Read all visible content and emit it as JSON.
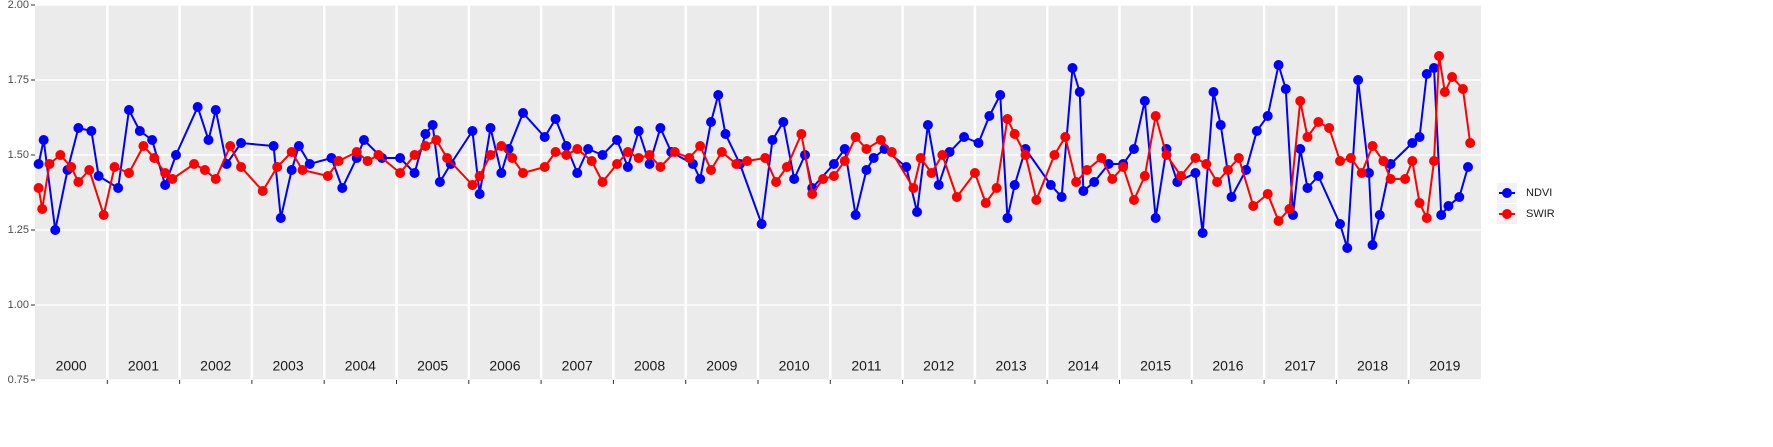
{
  "chart_data": {
    "type": "line",
    "categories": [
      "2000",
      "2001",
      "2002",
      "2003",
      "2004",
      "2005",
      "2006",
      "2007",
      "2008",
      "2009",
      "2010",
      "2011",
      "2012",
      "2013",
      "2014",
      "2015",
      "2016",
      "2017",
      "2018",
      "2019"
    ],
    "xlim": [
      2000,
      2020
    ],
    "ylim": [
      0.75,
      2.0
    ],
    "yticks": [
      0.75,
      {
        "value": 1.0,
        "label": "1.00"
      },
      1.25,
      {
        "value": 1.5,
        "label": "1.50"
      },
      1.75,
      {
        "value": 2.0,
        "label": "2.00"
      }
    ],
    "grid": true,
    "legend": "right",
    "series": [
      {
        "name": "NDVI",
        "color": "#0000ff",
        "x": [
          2000.05,
          2000.12,
          2000.28,
          2000.45,
          2000.6,
          2000.78,
          2000.88,
          2001.15,
          2001.3,
          2001.45,
          2001.62,
          2001.8,
          2001.95,
          2002.25,
          2002.4,
          2002.5,
          2002.65,
          2002.85,
          2003.3,
          2003.4,
          2003.55,
          2003.65,
          2003.8,
          2004.1,
          2004.25,
          2004.45,
          2004.55,
          2004.8,
          2005.05,
          2005.25,
          2005.4,
          2005.5,
          2005.6,
          2005.75,
          2006.05,
          2006.15,
          2006.3,
          2006.45,
          2006.55,
          2006.75,
          2007.05,
          2007.2,
          2007.35,
          2007.5,
          2007.65,
          2007.85,
          2008.05,
          2008.2,
          2008.35,
          2008.5,
          2008.65,
          2008.8,
          2009.1,
          2009.2,
          2009.35,
          2009.45,
          2009.55,
          2009.75,
          2010.05,
          2010.2,
          2010.35,
          2010.5,
          2010.65,
          2010.75,
          2011.05,
          2011.2,
          2011.35,
          2011.5,
          2011.6,
          2011.75,
          2012.05,
          2012.2,
          2012.35,
          2012.5,
          2012.65,
          2012.85,
          2013.05,
          2013.2,
          2013.35,
          2013.45,
          2013.55,
          2013.7,
          2014.05,
          2014.2,
          2014.35,
          2014.45,
          2014.5,
          2014.65,
          2014.85,
          2015.05,
          2015.2,
          2015.35,
          2015.5,
          2015.65,
          2015.8,
          2016.05,
          2016.15,
          2016.3,
          2016.4,
          2016.55,
          2016.75,
          2016.9,
          2017.05,
          2017.2,
          2017.3,
          2017.4,
          2017.5,
          2017.6,
          2017.75,
          2018.05,
          2018.15,
          2018.3,
          2018.45,
          2018.5,
          2018.6,
          2018.75,
          2019.05,
          2019.15,
          2019.25,
          2019.35,
          2019.45,
          2019.55,
          2019.7,
          2019.82
        ],
        "values": [
          1.47,
          1.55,
          1.25,
          1.45,
          1.59,
          1.58,
          1.43,
          1.39,
          1.65,
          1.58,
          1.55,
          1.4,
          1.5,
          1.66,
          1.55,
          1.65,
          1.47,
          1.54,
          1.53,
          1.29,
          1.45,
          1.53,
          1.47,
          1.49,
          1.39,
          1.49,
          1.55,
          1.49,
          1.49,
          1.44,
          1.57,
          1.6,
          1.41,
          1.47,
          1.58,
          1.37,
          1.59,
          1.44,
          1.52,
          1.64,
          1.56,
          1.62,
          1.53,
          1.44,
          1.52,
          1.5,
          1.55,
          1.46,
          1.58,
          1.47,
          1.59,
          1.51,
          1.47,
          1.42,
          1.61,
          1.7,
          1.57,
          1.47,
          1.27,
          1.55,
          1.61,
          1.42,
          1.5,
          1.39,
          1.47,
          1.52,
          1.3,
          1.45,
          1.49,
          1.52,
          1.46,
          1.31,
          1.6,
          1.4,
          1.51,
          1.56,
          1.54,
          1.63,
          1.7,
          1.29,
          1.4,
          1.52,
          1.4,
          1.36,
          1.79,
          1.71,
          1.38,
          1.41,
          1.47,
          1.47,
          1.52,
          1.68,
          1.29,
          1.52,
          1.41,
          1.44,
          1.24,
          1.71,
          1.6,
          1.36,
          1.45,
          1.58,
          1.63,
          1.8,
          1.72,
          1.3,
          1.52,
          1.39,
          1.43,
          1.27,
          1.19,
          1.75,
          1.44,
          1.2,
          1.3,
          1.47,
          1.54,
          1.56,
          1.77,
          1.79,
          1.3,
          1.33,
          1.36,
          1.46
        ]
      },
      {
        "name": "SWIR",
        "color": "#ff0000",
        "x": [
          2000.05,
          2000.1,
          2000.2,
          2000.35,
          2000.5,
          2000.6,
          2000.75,
          2000.95,
          2001.1,
          2001.3,
          2001.5,
          2001.65,
          2001.8,
          2001.9,
          2002.2,
          2002.35,
          2002.5,
          2002.7,
          2002.85,
          2003.15,
          2003.35,
          2003.55,
          2003.7,
          2004.05,
          2004.2,
          2004.45,
          2004.6,
          2004.75,
          2005.05,
          2005.25,
          2005.4,
          2005.55,
          2005.7,
          2006.05,
          2006.15,
          2006.3,
          2006.45,
          2006.6,
          2006.75,
          2007.05,
          2007.2,
          2007.35,
          2007.5,
          2007.7,
          2007.85,
          2008.05,
          2008.2,
          2008.35,
          2008.5,
          2008.65,
          2008.85,
          2009.05,
          2009.2,
          2009.35,
          2009.5,
          2009.7,
          2009.85,
          2010.1,
          2010.25,
          2010.4,
          2010.6,
          2010.75,
          2010.9,
          2011.05,
          2011.2,
          2011.35,
          2011.5,
          2011.7,
          2011.85,
          2012.15,
          2012.25,
          2012.4,
          2012.55,
          2012.75,
          2013.0,
          2013.15,
          2013.3,
          2013.45,
          2013.55,
          2013.7,
          2013.85,
          2014.1,
          2014.25,
          2014.4,
          2014.55,
          2014.75,
          2014.9,
          2015.05,
          2015.2,
          2015.35,
          2015.5,
          2015.65,
          2015.85,
          2016.05,
          2016.2,
          2016.35,
          2016.5,
          2016.65,
          2016.85,
          2017.05,
          2017.2,
          2017.35,
          2017.5,
          2017.6,
          2017.75,
          2017.9,
          2018.05,
          2018.2,
          2018.35,
          2018.5,
          2018.65,
          2018.75,
          2018.95,
          2019.05,
          2019.15,
          2019.25,
          2019.35,
          2019.42,
          2019.5,
          2019.6,
          2019.75,
          2019.85
        ],
        "values": [
          1.39,
          1.32,
          1.47,
          1.5,
          1.46,
          1.41,
          1.45,
          1.3,
          1.46,
          1.44,
          1.53,
          1.49,
          1.44,
          1.42,
          1.47,
          1.45,
          1.42,
          1.53,
          1.46,
          1.38,
          1.46,
          1.51,
          1.45,
          1.43,
          1.48,
          1.51,
          1.48,
          1.5,
          1.44,
          1.5,
          1.53,
          1.55,
          1.49,
          1.4,
          1.43,
          1.5,
          1.53,
          1.49,
          1.44,
          1.46,
          1.51,
          1.5,
          1.52,
          1.48,
          1.41,
          1.47,
          1.51,
          1.49,
          1.5,
          1.46,
          1.51,
          1.49,
          1.53,
          1.45,
          1.51,
          1.47,
          1.48,
          1.49,
          1.41,
          1.46,
          1.57,
          1.37,
          1.42,
          1.43,
          1.48,
          1.56,
          1.52,
          1.55,
          1.51,
          1.39,
          1.49,
          1.44,
          1.5,
          1.36,
          1.44,
          1.34,
          1.39,
          1.62,
          1.57,
          1.5,
          1.35,
          1.5,
          1.56,
          1.41,
          1.45,
          1.49,
          1.42,
          1.46,
          1.35,
          1.43,
          1.63,
          1.5,
          1.43,
          1.49,
          1.47,
          1.41,
          1.45,
          1.49,
          1.33,
          1.37,
          1.28,
          1.32,
          1.68,
          1.56,
          1.61,
          1.59,
          1.48,
          1.49,
          1.44,
          1.53,
          1.48,
          1.42,
          1.42,
          1.48,
          1.34,
          1.29,
          1.48,
          1.83,
          1.71,
          1.76,
          1.72,
          1.54
        ]
      }
    ]
  }
}
